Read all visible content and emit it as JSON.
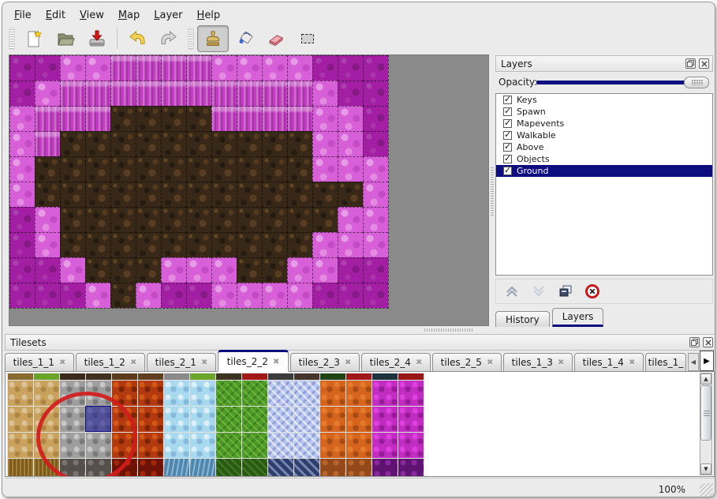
{
  "app": {
    "type": "tile-map-editor"
  },
  "menu_bar": {
    "items": [
      {
        "label": "File"
      },
      {
        "label": "Edit"
      },
      {
        "label": "View"
      },
      {
        "label": "Map"
      },
      {
        "label": "Layer"
      },
      {
        "label": "Help"
      }
    ]
  },
  "toolbar": {
    "buttons": [
      {
        "name": "new-file",
        "icon": "new-file-icon"
      },
      {
        "name": "open-file",
        "icon": "open-folder-icon"
      },
      {
        "name": "save-file",
        "icon": "save-icon"
      },
      {
        "name": "undo",
        "icon": "undo-arrow-icon"
      },
      {
        "name": "redo",
        "icon": "redo-arrow-icon"
      },
      {
        "name": "stamp-tool",
        "icon": "stamp-icon",
        "selected": true
      },
      {
        "name": "fill-tool",
        "icon": "paint-bucket-icon"
      },
      {
        "name": "eraser-tool",
        "icon": "eraser-icon"
      },
      {
        "name": "select-tool",
        "icon": "rectangle-select-icon"
      }
    ]
  },
  "layers_panel": {
    "title": "Layers",
    "opacity_label": "Opacity:",
    "opacity_value": 100,
    "layers": [
      {
        "name": "Keys",
        "checked": true,
        "selected": false
      },
      {
        "name": "Spawn",
        "checked": true,
        "selected": false
      },
      {
        "name": "Mapevents",
        "checked": true,
        "selected": false
      },
      {
        "name": "Walkable",
        "checked": true,
        "selected": false
      },
      {
        "name": "Above",
        "checked": true,
        "selected": false
      },
      {
        "name": "Objects",
        "checked": true,
        "selected": false
      },
      {
        "name": "Ground",
        "checked": true,
        "selected": true
      }
    ],
    "toolbar_icons": [
      "raise-layer-icon",
      "lower-layer-icon",
      "duplicate-layer-icon",
      "delete-layer-icon"
    ],
    "tabs": [
      {
        "label": "History",
        "active": false
      },
      {
        "label": "Layers",
        "active": true
      }
    ]
  },
  "map_view": {
    "tile_size": 32,
    "columns": 15,
    "rows": 10,
    "legend": {
      "A": "dark-magenta-scales",
      "B": "light-pink-scales",
      "C": "magenta-pillars",
      "G": "dark-brown-ground"
    },
    "grid": [
      "AABBCCCCBBBBAAA",
      "ABCCCCCCCCCCBAA",
      "BCCCGGGGCCCCBBA",
      "BCGGGGGGGGGGBBA",
      "BGGGGGGGGGGGBBB",
      "BGGGGGGGGGGGGGB",
      "ABGGGGGGGGGGGBB",
      "ABGGGGGGGGGGBBB",
      "AABGGGBBBGGBBAA",
      "AAABGBAABBBBAAA"
    ]
  },
  "tilesets_panel": {
    "title": "Tilesets",
    "tabs": [
      {
        "label": "tiles_1_1",
        "active": false
      },
      {
        "label": "tiles_1_2",
        "active": false
      },
      {
        "label": "tiles_2_1",
        "active": false
      },
      {
        "label": "tiles_2_2",
        "active": true
      },
      {
        "label": "tiles_2_3",
        "active": false
      },
      {
        "label": "tiles_2_4",
        "active": false
      },
      {
        "label": "tiles_2_5",
        "active": false
      },
      {
        "label": "tiles_1_3",
        "active": false
      },
      {
        "label": "tiles_1_4",
        "active": false
      },
      {
        "label": "tiles_1_",
        "active": false,
        "truncated": true
      }
    ],
    "tileset_grid": {
      "columns": [
        "tan",
        "tan",
        "gray",
        "gray",
        "lava",
        "lava",
        "ice",
        "ice",
        "green",
        "green",
        "crystal",
        "crystal",
        "orange",
        "orange",
        "magenta",
        "magenta"
      ],
      "full_rows": 3,
      "top_strip_colors": [
        "#8a6a2e",
        "#6aa428",
        "#3a2c1c",
        "#42301e",
        "#5a3c1c",
        "#5e3e1e",
        "#8a8a8a",
        "#6aa428",
        "#3c3420",
        "#a01818",
        "#3c3c3c",
        "#44342c",
        "#1e4414",
        "#a01818",
        "#1c3440",
        "#991414"
      ],
      "selected_tile": {
        "col": 3,
        "row": 1
      },
      "annotation": {
        "shape": "circle",
        "color": "#d31c1c"
      }
    }
  },
  "statusbar": {
    "zoom_level": "100%"
  },
  "colors": {
    "accent_navy": "#0d0d80",
    "selection_highlight": "#0d0d80",
    "annotation_red": "#d31c1c",
    "map_background": "#8a8a8a",
    "window_background": "#ebebeb"
  }
}
